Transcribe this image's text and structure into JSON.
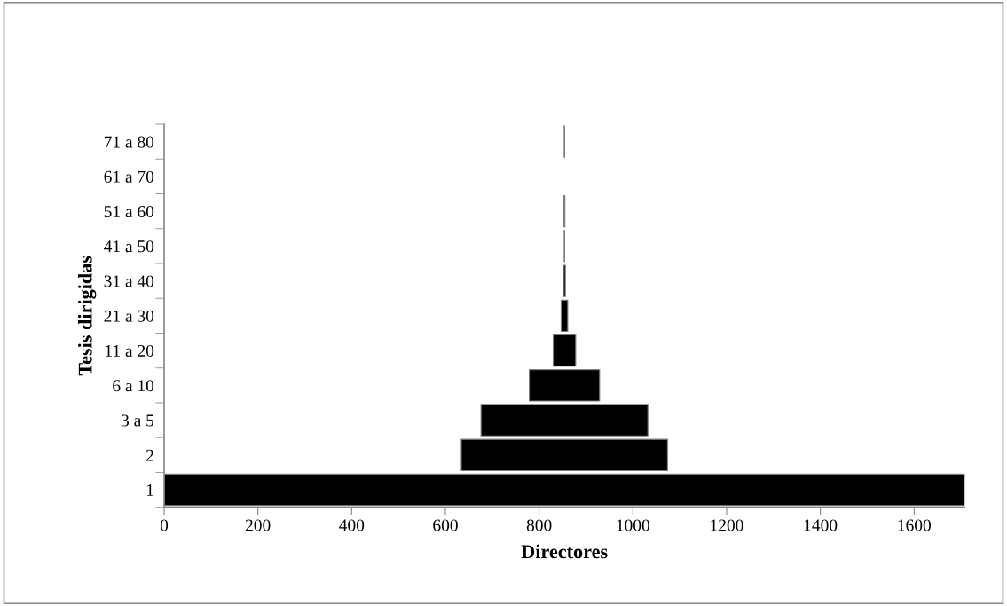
{
  "chart_data": {
    "type": "bar",
    "orientation": "horizontal",
    "xlabel": "Directores",
    "ylabel": "Tesis dirigidas",
    "categories": [
      "71 a 80",
      "61 a 70",
      "51 a 60",
      "41 a 50",
      "31 a 40",
      "21 a 30",
      "11 a 20",
      "6 a 10",
      "3 a 5",
      "2",
      "1"
    ],
    "values": [
      1,
      null,
      2,
      1,
      4,
      14,
      48,
      150,
      356,
      440,
      1708
    ],
    "base": [
      853.5,
      null,
      853,
      853.5,
      852,
      847,
      830,
      779,
      676,
      634,
      0
    ],
    "color": "#000000",
    "xlim": [
      0,
      1708
    ],
    "xticks": [
      0,
      200,
      400,
      600,
      800,
      1000,
      1200,
      1400,
      1600
    ],
    "grid": false,
    "legend": false
  }
}
